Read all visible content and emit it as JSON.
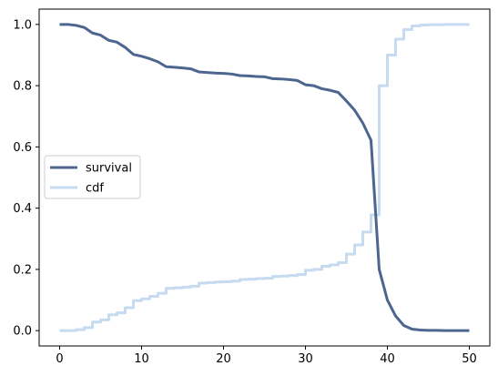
{
  "chart_data": {
    "type": "line",
    "title": "",
    "xlabel": "",
    "ylabel": "",
    "xlim": [
      -2.5,
      52.5
    ],
    "ylim": [
      -0.05,
      1.05
    ],
    "xticks": [
      0,
      10,
      20,
      30,
      40,
      50
    ],
    "xtick_labels": [
      "0",
      "10",
      "20",
      "30",
      "40",
      "50"
    ],
    "yticks": [
      0.0,
      0.2,
      0.4,
      0.6,
      0.8,
      1.0
    ],
    "ytick_labels": [
      "0.0",
      "0.2",
      "0.4",
      "0.6",
      "0.8",
      "1.0"
    ],
    "grid": false,
    "legend_position": "center-left",
    "series": [
      {
        "name": "survival",
        "label": "survival",
        "color": "#4c6690",
        "style": "line",
        "x": [
          0,
          1,
          2,
          3,
          4,
          5,
          6,
          7,
          8,
          9,
          10,
          11,
          12,
          13,
          14,
          15,
          16,
          17,
          18,
          19,
          20,
          21,
          22,
          23,
          24,
          25,
          26,
          27,
          28,
          29,
          30,
          31,
          32,
          33,
          34,
          35,
          36,
          37,
          38,
          39,
          40,
          41,
          42,
          43,
          44,
          45,
          46,
          47,
          48,
          49,
          50
        ],
        "y": [
          1.0,
          1.0,
          0.997,
          0.99,
          0.972,
          0.965,
          0.948,
          0.942,
          0.925,
          0.902,
          0.896,
          0.888,
          0.878,
          0.862,
          0.86,
          0.858,
          0.855,
          0.845,
          0.843,
          0.841,
          0.84,
          0.838,
          0.833,
          0.832,
          0.83,
          0.829,
          0.823,
          0.822,
          0.82,
          0.817,
          0.803,
          0.8,
          0.79,
          0.785,
          0.778,
          0.75,
          0.72,
          0.678,
          0.622,
          0.2,
          0.1,
          0.048,
          0.017,
          0.005,
          0.002,
          0.001,
          0.001,
          0.0,
          0.0,
          0.0,
          0.0
        ]
      },
      {
        "name": "cdf",
        "label": "cdf",
        "color": "#c6dbef",
        "style": "step",
        "x": [
          0,
          1,
          2,
          3,
          4,
          5,
          6,
          7,
          8,
          9,
          10,
          11,
          12,
          13,
          14,
          15,
          16,
          17,
          18,
          19,
          20,
          21,
          22,
          23,
          24,
          25,
          26,
          27,
          28,
          29,
          30,
          31,
          32,
          33,
          34,
          35,
          36,
          37,
          38,
          39,
          40,
          41,
          42,
          43,
          44,
          45,
          46,
          47,
          48,
          49,
          50
        ],
        "y": [
          0.0,
          0.0,
          0.003,
          0.01,
          0.028,
          0.035,
          0.052,
          0.058,
          0.075,
          0.098,
          0.104,
          0.112,
          0.122,
          0.138,
          0.14,
          0.142,
          0.145,
          0.155,
          0.157,
          0.159,
          0.16,
          0.162,
          0.167,
          0.168,
          0.17,
          0.171,
          0.177,
          0.178,
          0.18,
          0.183,
          0.197,
          0.2,
          0.21,
          0.215,
          0.222,
          0.25,
          0.28,
          0.322,
          0.378,
          0.8,
          0.9,
          0.952,
          0.983,
          0.995,
          0.998,
          0.999,
          0.999,
          1.0,
          1.0,
          1.0,
          1.0
        ]
      }
    ]
  }
}
